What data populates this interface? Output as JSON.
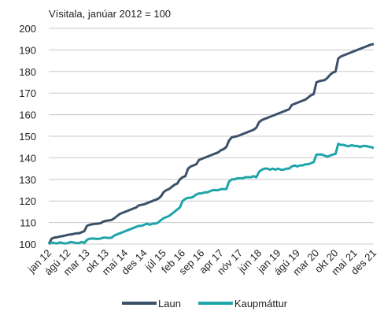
{
  "chart_data": {
    "type": "line",
    "subtitle": "Vísitala, janúar 2012 = 100",
    "categories": [
      "jan 12",
      null,
      null,
      null,
      null,
      null,
      null,
      "ágú 12",
      null,
      null,
      null,
      null,
      null,
      null,
      "mar 13",
      null,
      null,
      null,
      null,
      null,
      null,
      "okt 13",
      null,
      null,
      null,
      null,
      null,
      null,
      "maí 14",
      null,
      null,
      null,
      null,
      null,
      null,
      "des 14",
      null,
      null,
      null,
      null,
      null,
      null,
      "júl 15",
      null,
      null,
      null,
      null,
      null,
      null,
      "feb 16",
      null,
      null,
      null,
      null,
      null,
      null,
      "sep 16",
      null,
      null,
      null,
      null,
      null,
      null,
      "apr 17",
      null,
      null,
      null,
      null,
      null,
      null,
      "nóv 17",
      null,
      null,
      null,
      null,
      null,
      null,
      "jún 18",
      null,
      null,
      null,
      null,
      null,
      null,
      "jan 19",
      null,
      null,
      null,
      null,
      null,
      null,
      "ágú 19",
      null,
      null,
      null,
      null,
      null,
      null,
      "mar 20",
      null,
      null,
      null,
      null,
      null,
      null,
      "okt 20",
      null,
      null,
      null,
      null,
      null,
      null,
      "maí 21",
      null,
      null,
      null,
      null,
      null,
      null,
      "des 21"
    ],
    "series": [
      {
        "name": "Laun",
        "color": "#3b5169",
        "values": [
          100,
          102.5,
          103,
          103.2,
          103.5,
          103.7,
          104,
          104.3,
          104.5,
          104.7,
          105,
          105,
          105.5,
          106,
          108.5,
          109,
          109.2,
          109.4,
          109.5,
          109.7,
          110.5,
          110.8,
          111,
          111.2,
          112,
          113,
          114,
          114.5,
          115,
          115.5,
          116,
          116.5,
          117,
          118,
          118.2,
          118.5,
          119,
          119.5,
          120,
          120.5,
          121,
          122,
          124,
          125,
          125.5,
          126.5,
          127.5,
          128,
          130,
          131,
          131.5,
          135,
          136,
          136.5,
          137,
          139,
          139.5,
          140,
          140.5,
          141,
          141.5,
          142,
          142.5,
          143.5,
          144,
          145,
          148,
          149.5,
          149.8,
          150,
          150.5,
          151,
          151.5,
          152,
          152.5,
          153,
          154,
          156.5,
          157.5,
          158,
          158.5,
          159,
          159.5,
          160,
          160.5,
          161,
          161.5,
          162,
          162.5,
          164.5,
          165,
          165.5,
          166,
          166.5,
          167,
          168,
          169,
          169.5,
          175,
          175.5,
          175.8,
          176,
          177,
          178.5,
          179.5,
          180,
          186,
          187,
          187.5,
          188,
          188.5,
          189,
          189.5,
          190,
          190.5,
          191,
          191.5,
          192,
          192.5,
          192.7
        ]
      },
      {
        "name": "Kaupmáttur",
        "color": "#1ea5aa",
        "values": [
          100,
          100.8,
          100.5,
          100.3,
          100.8,
          100.5,
          100.3,
          100.5,
          101,
          100.8,
          100.5,
          100.5,
          101,
          100.5,
          102,
          102.5,
          102.6,
          102.5,
          102.4,
          102.6,
          103,
          103,
          102.8,
          103,
          104,
          104.5,
          105,
          105.5,
          106,
          106.5,
          107,
          107.5,
          108,
          108.5,
          108.5,
          109,
          109.5,
          109,
          109.5,
          109.5,
          110,
          111,
          112,
          112.5,
          113,
          114,
          115,
          116,
          117,
          120,
          121,
          121.5,
          121.5,
          122,
          123,
          123.5,
          123.5,
          124,
          124,
          124.5,
          125,
          125,
          125,
          125.5,
          125.5,
          125.5,
          129,
          130,
          130,
          130.5,
          130.5,
          130.5,
          131,
          131,
          131,
          131.5,
          131,
          133.5,
          134.5,
          135,
          135,
          134.5,
          135,
          134.5,
          135,
          134.5,
          134.5,
          135,
          135,
          136,
          136.5,
          136,
          136.5,
          136.5,
          137,
          137,
          137.5,
          138,
          141.5,
          141.5,
          141.5,
          141,
          140.5,
          141,
          141.5,
          141.8,
          146.5,
          146,
          146,
          145.5,
          145.5,
          145.8,
          145.5,
          145.5,
          145,
          145.5,
          145.5,
          145.2,
          145,
          144.5
        ]
      }
    ],
    "ylim": [
      100,
      200
    ],
    "yticks": [
      100,
      110,
      120,
      130,
      140,
      150,
      160,
      170,
      180,
      190,
      200
    ],
    "grid": true,
    "legend": "bottom"
  }
}
